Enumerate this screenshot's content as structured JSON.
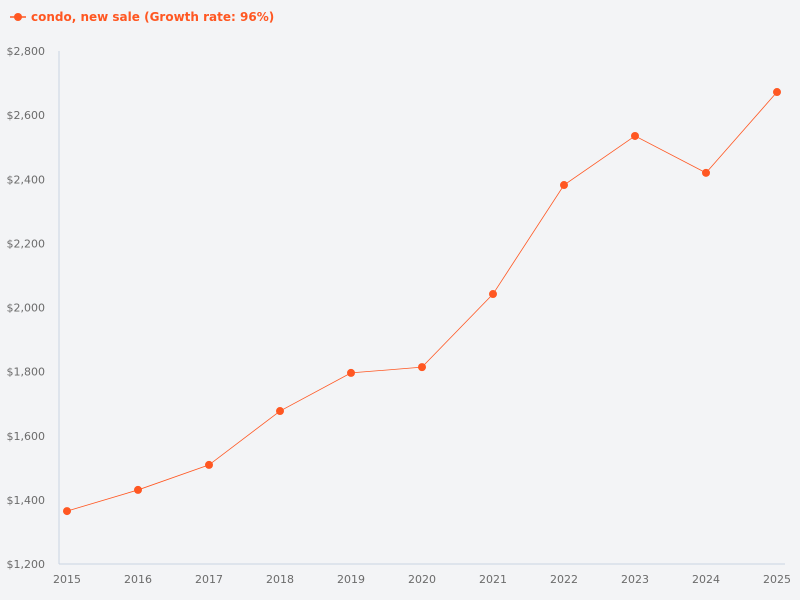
{
  "chart_data": {
    "type": "line",
    "title": "",
    "xlabel": "",
    "ylabel": "",
    "legend": {
      "placement": "top-left",
      "entries": [
        "condo, new sale (Growth rate: 96%)"
      ]
    },
    "x": [
      "2015",
      "2016",
      "2017",
      "2018",
      "2019",
      "2020",
      "2021",
      "2022",
      "2023",
      "2024",
      "2025"
    ],
    "series": [
      {
        "name": "condo, new sale (Growth rate: 96%)",
        "color": "#ff5722",
        "values": [
          1365,
          1431,
          1509,
          1677,
          1796,
          1814,
          2042,
          2382,
          2535,
          2420,
          2672
        ]
      }
    ],
    "ylim": [
      1200,
      2800
    ],
    "yticks": [
      1200,
      1400,
      1600,
      1800,
      2000,
      2200,
      2400,
      2600,
      2800
    ],
    "ytick_labels": [
      "$1,200",
      "$1,400",
      "$1,600",
      "$1,800",
      "$2,000",
      "$2,200",
      "$2,400",
      "$2,600",
      "$2,800"
    ],
    "grid": false,
    "colors": {
      "series": "#ff5722",
      "axis": "#c9d3e3",
      "tick_text": "#6b6b6b",
      "background": "#f3f4f6"
    }
  }
}
